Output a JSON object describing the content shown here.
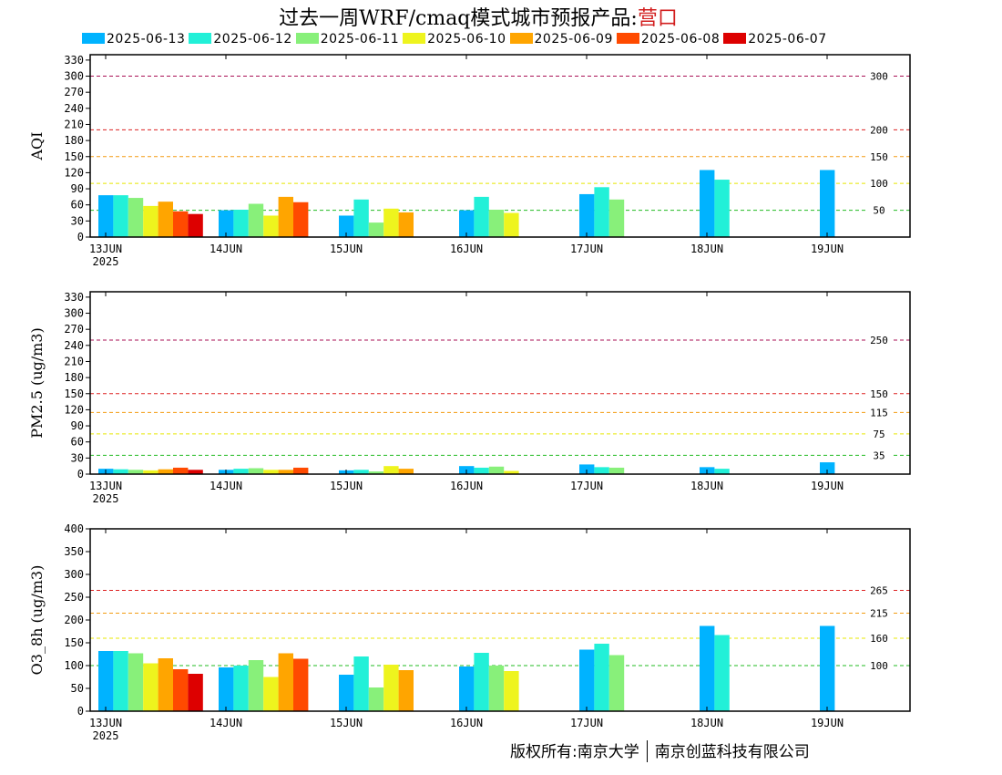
{
  "title": {
    "main": "过去一周WRF/cmaq模式城市预报产品:",
    "city": "营口"
  },
  "footer": {
    "left": "版权所有:南京大学",
    "right": "南京创蓝科技有限公司"
  },
  "chart_data": [
    {
      "type": "bar",
      "ylabel": "AQI",
      "ylim": [
        0,
        340
      ],
      "yticks": [
        0,
        30,
        60,
        90,
        120,
        150,
        180,
        210,
        240,
        270,
        300,
        330
      ],
      "categories": [
        "13JUN",
        "14JUN",
        "15JUN",
        "16JUN",
        "17JUN",
        "18JUN",
        "19JUN"
      ],
      "year_label": "2025",
      "thresholds": [
        {
          "value": 50,
          "label": "50",
          "color": "#22bb22"
        },
        {
          "value": 100,
          "label": "100",
          "color": "#e8e800"
        },
        {
          "value": 150,
          "label": "150",
          "color": "#f39c12"
        },
        {
          "value": 200,
          "label": "200",
          "color": "#dd2222"
        },
        {
          "value": 300,
          "label": "300",
          "color": "#aa1155"
        }
      ],
      "series": [
        {
          "name": "2025-06-13",
          "color": "#00b3ff",
          "values": [
            78,
            50,
            40,
            50,
            80,
            125,
            125
          ]
        },
        {
          "name": "2025-06-12",
          "color": "#22f0d8",
          "values": [
            78,
            51,
            70,
            75,
            93,
            107,
            null
          ]
        },
        {
          "name": "2025-06-11",
          "color": "#88f07a",
          "values": [
            73,
            62,
            27,
            51,
            70,
            null,
            null
          ]
        },
        {
          "name": "2025-06-10",
          "color": "#eef41e",
          "values": [
            58,
            40,
            53,
            45,
            null,
            null,
            null
          ]
        },
        {
          "name": "2025-06-09",
          "color": "#ffa500",
          "values": [
            66,
            75,
            46,
            null,
            null,
            null,
            null
          ]
        },
        {
          "name": "2025-06-08",
          "color": "#ff4a00",
          "values": [
            48,
            65,
            null,
            null,
            null,
            null,
            null
          ]
        },
        {
          "name": "2025-06-07",
          "color": "#dd0000",
          "values": [
            43,
            null,
            null,
            null,
            null,
            null,
            null
          ]
        }
      ]
    },
    {
      "type": "bar",
      "ylabel": "PM2.5 (ug/m3)",
      "ylim": [
        0,
        340
      ],
      "yticks": [
        0,
        30,
        60,
        90,
        120,
        150,
        180,
        210,
        240,
        270,
        300,
        330
      ],
      "categories": [
        "13JUN",
        "14JUN",
        "15JUN",
        "16JUN",
        "17JUN",
        "18JUN",
        "19JUN"
      ],
      "year_label": "2025",
      "thresholds": [
        {
          "value": 35,
          "label": "35",
          "color": "#22bb22"
        },
        {
          "value": 75,
          "label": "75",
          "color": "#e8e800"
        },
        {
          "value": 115,
          "label": "115",
          "color": "#f39c12"
        },
        {
          "value": 150,
          "label": "150",
          "color": "#dd2222"
        },
        {
          "value": 250,
          "label": "250",
          "color": "#aa1155"
        }
      ],
      "series": [
        {
          "name": "2025-06-13",
          "color": "#00b3ff",
          "values": [
            10,
            8,
            7,
            15,
            18,
            13,
            22
          ]
        },
        {
          "name": "2025-06-12",
          "color": "#22f0d8",
          "values": [
            9,
            10,
            8,
            12,
            13,
            10,
            null
          ]
        },
        {
          "name": "2025-06-11",
          "color": "#88f07a",
          "values": [
            8,
            11,
            5,
            14,
            12,
            null,
            null
          ]
        },
        {
          "name": "2025-06-10",
          "color": "#eef41e",
          "values": [
            7,
            8,
            15,
            6,
            null,
            null,
            null
          ]
        },
        {
          "name": "2025-06-09",
          "color": "#ffa500",
          "values": [
            9,
            8,
            10,
            null,
            null,
            null,
            null
          ]
        },
        {
          "name": "2025-06-08",
          "color": "#ff4a00",
          "values": [
            12,
            12,
            null,
            null,
            null,
            null,
            null
          ]
        },
        {
          "name": "2025-06-07",
          "color": "#dd0000",
          "values": [
            8,
            null,
            null,
            null,
            null,
            null,
            null
          ]
        }
      ]
    },
    {
      "type": "bar",
      "ylabel": "O3_8h (ug/m3)",
      "ylim": [
        0,
        400
      ],
      "yticks": [
        0,
        50,
        100,
        150,
        200,
        250,
        300,
        350,
        400
      ],
      "categories": [
        "13JUN",
        "14JUN",
        "15JUN",
        "16JUN",
        "17JUN",
        "18JUN",
        "19JUN"
      ],
      "year_label": "2025",
      "thresholds": [
        {
          "value": 100,
          "label": "100",
          "color": "#22bb22"
        },
        {
          "value": 160,
          "label": "160",
          "color": "#e8e800"
        },
        {
          "value": 215,
          "label": "215",
          "color": "#f39c12"
        },
        {
          "value": 265,
          "label": "265",
          "color": "#dd2222"
        }
      ],
      "series": [
        {
          "name": "2025-06-13",
          "color": "#00b3ff",
          "values": [
            132,
            96,
            80,
            98,
            135,
            187,
            187
          ]
        },
        {
          "name": "2025-06-12",
          "color": "#22f0d8",
          "values": [
            132,
            100,
            120,
            128,
            148,
            167,
            null
          ]
        },
        {
          "name": "2025-06-11",
          "color": "#88f07a",
          "values": [
            127,
            112,
            52,
            100,
            123,
            null,
            null
          ]
        },
        {
          "name": "2025-06-10",
          "color": "#eef41e",
          "values": [
            105,
            75,
            102,
            88,
            null,
            null,
            null
          ]
        },
        {
          "name": "2025-06-09",
          "color": "#ffa500",
          "values": [
            116,
            127,
            90,
            null,
            null,
            null,
            null
          ]
        },
        {
          "name": "2025-06-08",
          "color": "#ff4a00",
          "values": [
            92,
            115,
            null,
            null,
            null,
            null,
            null
          ]
        },
        {
          "name": "2025-06-07",
          "color": "#dd0000",
          "values": [
            82,
            null,
            null,
            null,
            null,
            null,
            null
          ]
        }
      ]
    }
  ]
}
